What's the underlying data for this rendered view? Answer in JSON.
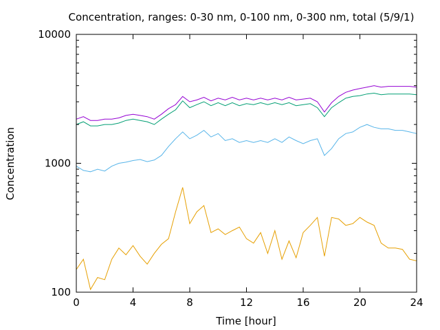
{
  "chart_data": {
    "type": "line",
    "title": "Concentration, ranges: 0-30 nm, 0-100 nm, 0-300 nm, total (5/9/1)",
    "xlabel": "Time [hour]",
    "ylabel": "Concentration",
    "xlim": [
      0,
      24
    ],
    "ylim": [
      100,
      10000
    ],
    "yscale": "log",
    "x_ticks": [
      0,
      4,
      8,
      12,
      16,
      20,
      24
    ],
    "y_ticks": [
      100,
      1000,
      10000
    ],
    "x_tick_labels": [
      "0",
      "4",
      "8",
      "12",
      "16",
      "20",
      "24"
    ],
    "y_tick_labels": [
      "100",
      "1000",
      "10000"
    ],
    "grid": false,
    "legend": "none",
    "x": [
      0,
      0.5,
      1,
      1.5,
      2,
      2.5,
      3,
      3.5,
      4,
      4.5,
      5,
      5.5,
      6,
      6.5,
      7,
      7.5,
      8,
      8.5,
      9,
      9.5,
      10,
      10.5,
      11,
      11.5,
      12,
      12.5,
      13,
      13.5,
      14,
      14.5,
      15,
      15.5,
      16,
      16.5,
      17,
      17.5,
      18,
      18.5,
      19,
      19.5,
      20,
      20.5,
      21,
      21.5,
      22,
      22.5,
      23,
      23.5,
      24
    ],
    "series": [
      {
        "color": "#e69f00",
        "values": [
          150,
          180,
          105,
          130,
          125,
          180,
          220,
          195,
          230,
          190,
          165,
          200,
          235,
          260,
          420,
          650,
          340,
          420,
          470,
          290,
          310,
          280,
          300,
          320,
          260,
          240,
          290,
          200,
          300,
          180,
          250,
          185,
          290,
          330,
          380,
          190,
          380,
          370,
          330,
          340,
          380,
          350,
          330,
          240,
          220,
          220,
          215,
          180,
          175
        ]
      },
      {
        "color": "#56b4e9",
        "values": [
          950,
          880,
          860,
          900,
          870,
          950,
          1000,
          1020,
          1050,
          1070,
          1030,
          1060,
          1150,
          1350,
          1550,
          1750,
          1550,
          1650,
          1800,
          1600,
          1700,
          1500,
          1550,
          1450,
          1500,
          1450,
          1500,
          1450,
          1550,
          1450,
          1600,
          1500,
          1420,
          1500,
          1550,
          1150,
          1300,
          1550,
          1700,
          1750,
          1900,
          2000,
          1900,
          1850,
          1850,
          1800,
          1800,
          1750,
          1700
        ]
      },
      {
        "color": "#009e73",
        "values": [
          2000,
          2100,
          1950,
          1950,
          2000,
          2000,
          2050,
          2150,
          2200,
          2150,
          2100,
          2000,
          2200,
          2400,
          2600,
          3050,
          2700,
          2850,
          3000,
          2800,
          2950,
          2800,
          2950,
          2800,
          2900,
          2850,
          2950,
          2850,
          2950,
          2850,
          2950,
          2800,
          2850,
          2900,
          2700,
          2300,
          2700,
          2950,
          3200,
          3300,
          3350,
          3450,
          3500,
          3400,
          3450,
          3450,
          3450,
          3450,
          3400
        ]
      },
      {
        "color": "#9400d3",
        "values": [
          2200,
          2300,
          2150,
          2150,
          2200,
          2200,
          2250,
          2350,
          2400,
          2350,
          2300,
          2200,
          2400,
          2650,
          2850,
          3300,
          3000,
          3100,
          3250,
          3050,
          3200,
          3100,
          3250,
          3100,
          3200,
          3100,
          3200,
          3100,
          3200,
          3100,
          3250,
          3100,
          3150,
          3200,
          3000,
          2500,
          2950,
          3300,
          3550,
          3700,
          3800,
          3900,
          4000,
          3900,
          3950,
          3950,
          3950,
          3950,
          3900
        ]
      }
    ]
  }
}
